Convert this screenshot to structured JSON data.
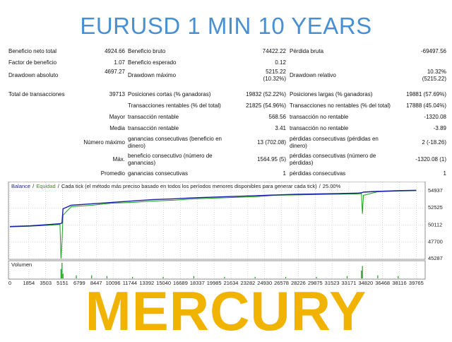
{
  "header": {
    "title": "EURUSD 1 MIN 10 YEARS"
  },
  "report": {
    "rows": [
      [
        [
          "Beneficio neto total",
          "4924.66"
        ],
        [
          "Beneficio bruto",
          "74422.22"
        ],
        [
          "Pérdida bruta",
          "-69497.56"
        ]
      ],
      [
        [
          "Factor de beneficio",
          "1.07"
        ],
        [
          "Beneficio esperado",
          "0.12"
        ],
        null
      ],
      [
        [
          "Drawdown absoluto",
          "4697.27"
        ],
        [
          "Drawdown máximo",
          "5215.22 (10.32%)"
        ],
        [
          "Drawdown relativo",
          "10.32% (5215.22)"
        ]
      ],
      [
        [
          "Total de transacciones",
          "39713"
        ],
        [
          "Posiciones cortas (% ganadoras)",
          "19832 (52.22%)"
        ],
        [
          "Posiciones largas (% ganadoras)",
          "19881 (57.69%)"
        ]
      ],
      [
        null,
        [
          "Transacciones rentables (% del total)",
          "21825 (54.96%)"
        ],
        [
          "Transacciones no rentables (% del total)",
          "17888 (45.04%)"
        ]
      ]
    ],
    "details": [
      {
        "label": "Mayor",
        "cells": [
          [
            "transacción rentable",
            "568.56"
          ],
          [
            "transacción no rentable",
            "-1320.08"
          ]
        ]
      },
      {
        "label": "Media",
        "cells": [
          [
            "transacción rentable",
            "3.41"
          ],
          [
            "transacción no rentable",
            "-3.89"
          ]
        ]
      },
      {
        "label": "Número máximo",
        "cells": [
          [
            "ganancias consecutivas (beneficio en dinero)",
            "13 (702.08)"
          ],
          [
            "pérdidas consecutivas (pérdidas en dinero)",
            "2 (-18.26)"
          ]
        ]
      },
      {
        "label": "Máx.",
        "cells": [
          [
            "beneficio consecutivo (número de ganancias)",
            "1564.95 (5)"
          ],
          [
            "pérdidas consecutivas (número de pérdidas)",
            "-1320.08 (1)"
          ]
        ]
      },
      {
        "label": "Promedio",
        "cells": [
          [
            "ganancias consecutivas",
            "1"
          ],
          [
            "pérdidas consecutivas",
            "1"
          ]
        ]
      }
    ]
  },
  "chart_data": {
    "type": "line",
    "separator": "/",
    "note": "Cada tick (el método más preciso basado en todos los períodos menores disponibles para generar cada tick)",
    "quality": "25.00%",
    "x": [
      0,
      2000,
      4000,
      4900,
      5000,
      5100,
      5200,
      6000,
      8000,
      10000,
      12000,
      14000,
      16000,
      18000,
      20000,
      22000,
      24000,
      26000,
      28000,
      30000,
      32000,
      34000,
      34400,
      34500,
      34600,
      36000,
      38000,
      39765
    ],
    "series": [
      {
        "name": "Balance",
        "color": "#1c1ca8",
        "values": [
          49900,
          50000,
          50200,
          50300,
          50350,
          50400,
          52400,
          52900,
          53100,
          53300,
          53500,
          53700,
          53800,
          53950,
          54050,
          54150,
          54250,
          54350,
          54450,
          54500,
          54550,
          54600,
          54650,
          54700,
          54750,
          54850,
          54950,
          55000
        ]
      },
      {
        "name": "Equidad",
        "color": "#18a018",
        "values": [
          49850,
          49950,
          50100,
          50200,
          45400,
          47800,
          51500,
          52700,
          52900,
          53200,
          53300,
          53500,
          53600,
          53800,
          53900,
          54000,
          54100,
          54300,
          54350,
          54400,
          54450,
          54500,
          54550,
          51700,
          54300,
          54800,
          54900,
          54950
        ]
      }
    ],
    "xlim": [
      0,
      40500
    ],
    "ylim": [
      45287,
      56230
    ],
    "xticks": [
      0,
      1854,
      3503,
      5151,
      6799,
      8447,
      10096,
      11744,
      13392,
      15040,
      16689,
      18337,
      19985,
      21634,
      23282,
      24930,
      26578,
      28226,
      29875,
      31523,
      33171,
      34820,
      36468,
      38116,
      39765
    ],
    "yticks": [
      54937,
      52525,
      50112,
      47700,
      45287
    ],
    "grid": true,
    "volume": {
      "label": "Volumen",
      "color": "#18a018",
      "ylim": [
        0,
        10
      ],
      "x": [
        5000,
        5100,
        5200,
        6500,
        8000,
        9500,
        12000,
        15000,
        18000,
        21000,
        24000,
        27000,
        30000,
        33000,
        34400,
        34500,
        36000,
        38000
      ],
      "values": [
        6,
        10,
        3,
        2,
        2,
        1.5,
        1,
        1,
        1.5,
        1,
        1,
        1,
        1,
        1.5,
        5,
        8,
        2,
        1.5
      ]
    }
  },
  "footer": {
    "title": "MERCURY"
  }
}
